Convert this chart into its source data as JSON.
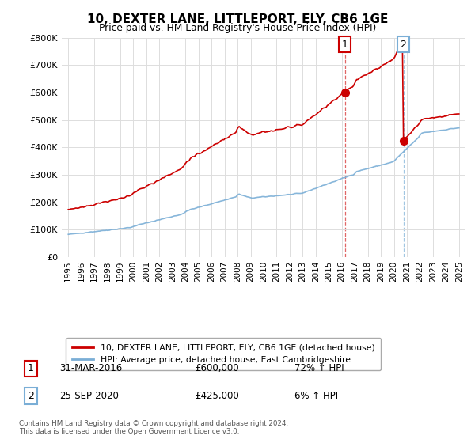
{
  "title": "10, DEXTER LANE, LITTLEPORT, ELY, CB6 1GE",
  "subtitle": "Price paid vs. HM Land Registry's House Price Index (HPI)",
  "legend_line1": "10, DEXTER LANE, LITTLEPORT, ELY, CB6 1GE (detached house)",
  "legend_line2": "HPI: Average price, detached house, East Cambridgeshire",
  "note1_label": "1",
  "note1_date": "31-MAR-2016",
  "note1_price": "£600,000",
  "note1_hpi": "72% ↑ HPI",
  "note2_label": "2",
  "note2_date": "25-SEP-2020",
  "note2_price": "£425,000",
  "note2_hpi": "6% ↑ HPI",
  "footer": "Contains HM Land Registry data © Crown copyright and database right 2024.\nThis data is licensed under the Open Government Licence v3.0.",
  "price_line_color": "#cc0000",
  "hpi_line_color": "#7aaed6",
  "background_color": "#ffffff",
  "grid_color": "#dddddd",
  "ylim": [
    0,
    800000
  ],
  "yticks": [
    0,
    100000,
    200000,
    300000,
    400000,
    500000,
    600000,
    700000,
    800000
  ],
  "xlim_start": 1994.5,
  "xlim_end": 2025.5,
  "point1_x": 2016.25,
  "point1_y": 600000,
  "point2_x": 2020.73,
  "point2_y": 425000
}
